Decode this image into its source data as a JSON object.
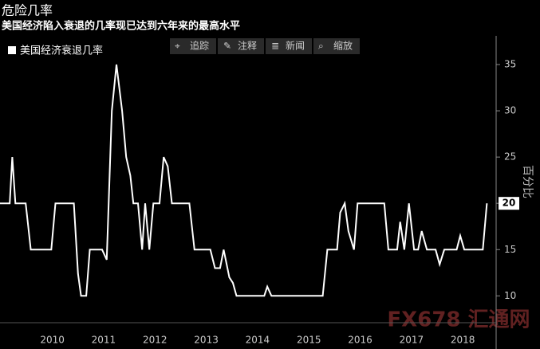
{
  "chart_data": {
    "type": "line",
    "title": "危险几率",
    "subtitle": "美国经济陷入衰退的几率现已达到六年来的最高水平",
    "y_axis_label": "百分比",
    "x": [
      2009.48,
      2009.67,
      2009.72,
      2009.78,
      2009.98,
      2010.08,
      2010.48,
      2010.56,
      2010.92,
      2011.0,
      2011.06,
      2011.16,
      2011.23,
      2011.47,
      2011.56,
      2011.66,
      2011.75,
      2011.86,
      2011.94,
      2012.02,
      2012.08,
      2012.17,
      2012.25,
      2012.31,
      2012.39,
      2012.47,
      2012.59,
      2012.67,
      2012.75,
      2012.83,
      2013.17,
      2013.27,
      2013.58,
      2013.67,
      2013.77,
      2013.84,
      2013.95,
      2014.02,
      2014.09,
      2014.63,
      2014.69,
      2014.77,
      2015.77,
      2015.86,
      2016.05,
      2016.11,
      2016.2,
      2016.27,
      2016.38,
      2016.45,
      2016.97,
      2017.05,
      2017.22,
      2017.28,
      2017.36,
      2017.45,
      2017.55,
      2017.63,
      2017.7,
      2017.8,
      2017.97,
      2018.05,
      2018.14,
      2018.38,
      2018.45,
      2018.53,
      2018.89,
      2018.97
    ],
    "series": [
      {
        "name": "美国经济衰退几率",
        "color": "#ffffff",
        "values": [
          20,
          20,
          25,
          20,
          20,
          15,
          15,
          20,
          20,
          12.4,
          10,
          10,
          15,
          15,
          13.9,
          30,
          35,
          30,
          25,
          23,
          20,
          20,
          15,
          20,
          15,
          20,
          20,
          25,
          24,
          20,
          20,
          15,
          15,
          13,
          13,
          15,
          12,
          11.4,
          10,
          10,
          11,
          10,
          10,
          15,
          15,
          19,
          20,
          17,
          15,
          20,
          20,
          15,
          15,
          18,
          15,
          20,
          15,
          15,
          17,
          15,
          15,
          13.4,
          15,
          15,
          16.5,
          15,
          15,
          20
        ]
      }
    ],
    "xlim": [
      2009.48,
      2019.15
    ],
    "ylim": [
      7.1,
      38.1
    ],
    "yticks": [
      10,
      15,
      20,
      25,
      30,
      35
    ],
    "xticks": [
      {
        "value": 2010.5,
        "label": "2010"
      },
      {
        "value": 2011.5,
        "label": "2011"
      },
      {
        "value": 2012.5,
        "label": "2012"
      },
      {
        "value": 2013.5,
        "label": "2013"
      },
      {
        "value": 2014.5,
        "label": "2014"
      },
      {
        "value": 2015.5,
        "label": "2015"
      },
      {
        "value": 2016.5,
        "label": "2016"
      },
      {
        "value": 2017.5,
        "label": "2017"
      },
      {
        "value": 2018.5,
        "label": "2018"
      }
    ],
    "grid": false
  },
  "toolbar": [
    "追踪",
    "注释",
    "新闻",
    "缩放"
  ],
  "watermark": "FX678 汇通网"
}
